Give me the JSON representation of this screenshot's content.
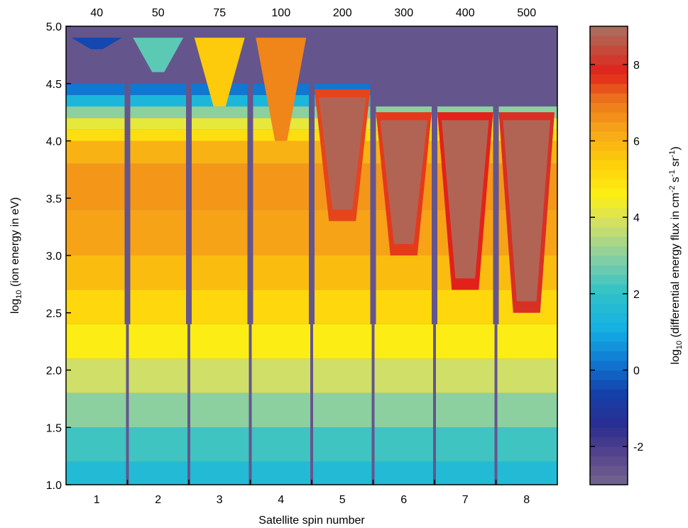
{
  "chart_data": {
    "type": "heatmap",
    "xlabel": "Satellite spin number",
    "ylabel_base": "log",
    "ylabel_sub": "10",
    "ylabel_rest": " (ion energy in eV)",
    "x_ticks": [
      "1",
      "2",
      "3",
      "4",
      "5",
      "6",
      "7",
      "8"
    ],
    "top_ticks": [
      "40",
      "50",
      "75",
      "100",
      "200",
      "300",
      "400",
      "500"
    ],
    "y_ticks": [
      "1.0",
      "1.5",
      "2.0",
      "2.5",
      "3.0",
      "3.5",
      "4.0",
      "4.5",
      "5.0"
    ],
    "ylim": [
      1.0,
      5.0
    ],
    "colorbar": {
      "label_base": "log",
      "label_sub": "10",
      "label_mid": " (differential energy flux in cm",
      "sup1": "-2",
      "mid2": " s",
      "sup2": "-1",
      "mid3": " sr",
      "sup3": "-1",
      "label_end": ")",
      "range": [
        -3,
        9
      ],
      "ticks": [
        "-2",
        "0",
        "2",
        "4",
        "6",
        "8"
      ]
    },
    "background_flux": -2.6,
    "bands": [
      {
        "lo": 1.0,
        "hi": 1.2,
        "flux": 1.6
      },
      {
        "lo": 1.2,
        "hi": 1.5,
        "flux": 2.2
      },
      {
        "lo": 1.5,
        "hi": 1.8,
        "flux": 3.0
      },
      {
        "lo": 1.8,
        "hi": 2.1,
        "flux": 3.8
      },
      {
        "lo": 2.1,
        "hi": 2.4,
        "flux": 4.6
      },
      {
        "lo": 2.4,
        "hi": 2.7,
        "flux": 5.2
      },
      {
        "lo": 2.7,
        "hi": 3.0,
        "flux": 5.8
      },
      {
        "lo": 3.0,
        "hi": 3.4,
        "flux": 6.3
      },
      {
        "lo": 3.4,
        "hi": 3.8,
        "flux": 6.5
      },
      {
        "lo": 3.8,
        "hi": 4.0,
        "flux": 6.0
      },
      {
        "lo": 4.0,
        "hi": 4.1,
        "flux": 5.0
      },
      {
        "lo": 4.1,
        "hi": 4.2,
        "flux": 4.2
      },
      {
        "lo": 4.2,
        "hi": 4.3,
        "flux": 3.0
      },
      {
        "lo": 4.3,
        "hi": 4.4,
        "flux": 1.4
      },
      {
        "lo": 4.4,
        "hi": 4.5,
        "flux": 0.2
      }
    ],
    "spins": [
      {
        "spin": 1,
        "top_energy": 4.5,
        "hole_bottom": null,
        "rim_flux": null,
        "features": [
          {
            "lo": 4.8,
            "hi": 4.9,
            "flux": -0.5
          }
        ]
      },
      {
        "spin": 2,
        "top_energy": 4.5,
        "hole_bottom": null,
        "rim_flux": null,
        "features": [
          {
            "lo": 4.6,
            "hi": 4.9,
            "flux": 2.5
          }
        ]
      },
      {
        "spin": 3,
        "top_energy": 4.9,
        "hole_bottom": null,
        "rim_flux": null,
        "features": [
          {
            "lo": 4.3,
            "hi": 4.9,
            "flux": 5.5
          }
        ]
      },
      {
        "spin": 4,
        "top_energy": 4.9,
        "hole_bottom": null,
        "rim_flux": null,
        "features": [
          {
            "lo": 4.0,
            "hi": 4.9,
            "flux": 6.8
          }
        ]
      },
      {
        "spin": 5,
        "top_energy": 4.5,
        "hole_bottom": 3.4,
        "rim_flux": 7.5,
        "features": []
      },
      {
        "spin": 6,
        "top_energy": 4.3,
        "hole_bottom": 3.1,
        "rim_flux": 7.6,
        "features": []
      },
      {
        "spin": 7,
        "top_energy": 4.3,
        "hole_bottom": 2.8,
        "rim_flux": 7.8,
        "features": []
      },
      {
        "spin": 8,
        "top_energy": 4.3,
        "hole_bottom": 2.6,
        "rim_flux": 8.0,
        "features": []
      }
    ],
    "hole_flux": 8.8
  }
}
